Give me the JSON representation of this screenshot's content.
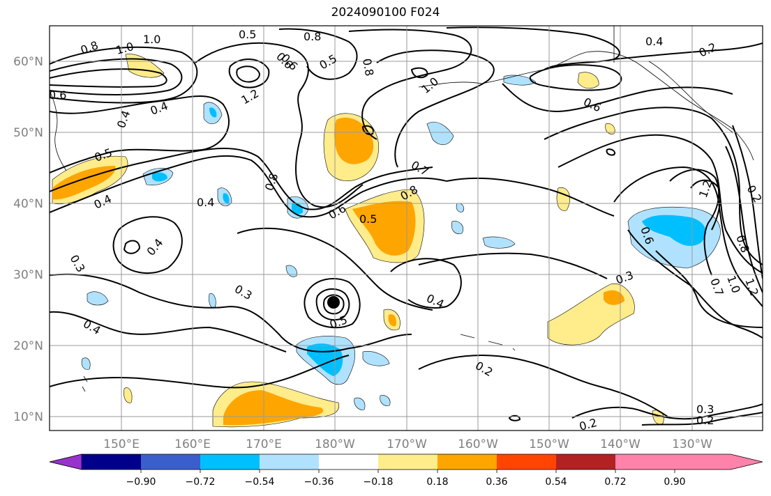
{
  "title": "2024090100 F024",
  "lat_labels": [
    "60°N",
    "50°N",
    "40°N",
    "30°N",
    "20°N",
    "10°N"
  ],
  "lon_labels": [
    "150°E",
    "160°E",
    "170°E",
    "180°W",
    "170°W",
    "160°W",
    "150°W",
    "140°W",
    "130°W"
  ],
  "colorbar": {
    "colors": [
      "#9932cc",
      "#00008b",
      "#3a5fcd",
      "#00bfff",
      "#b0e2ff",
      "#ffffff",
      "#ffec8b",
      "#ffa500",
      "#ff4500",
      "#b22222",
      "#ff82ab"
    ],
    "tick_labels": [
      "−0.90",
      "−0.72",
      "−0.54",
      "−0.36",
      "−0.18",
      "0.18",
      "0.36",
      "0.54",
      "0.72",
      "0.90"
    ]
  },
  "contour_labels": [
    {
      "text": "1.0"
    },
    {
      "text": "0.8"
    },
    {
      "text": "1.0"
    },
    {
      "text": "0.5"
    },
    {
      "text": "0.8"
    },
    {
      "text": "0.5"
    },
    {
      "text": "0.6"
    },
    {
      "text": "1.2"
    },
    {
      "text": "1.0"
    },
    {
      "text": "0.8"
    },
    {
      "text": "0.6"
    },
    {
      "text": "0.4"
    },
    {
      "text": "0.4"
    },
    {
      "text": "0.5"
    },
    {
      "text": "0.4"
    },
    {
      "text": "0.4"
    },
    {
      "text": "0.8"
    },
    {
      "text": "0.6"
    },
    {
      "text": "0.5"
    },
    {
      "text": "0.7"
    },
    {
      "text": "0.8"
    },
    {
      "text": "0.4"
    },
    {
      "text": "0.3"
    },
    {
      "text": "0.3"
    },
    {
      "text": "0.4"
    },
    {
      "text": "0.5"
    },
    {
      "text": "0.4"
    },
    {
      "text": "0.3"
    },
    {
      "text": "0.2"
    },
    {
      "text": "0.4"
    },
    {
      "text": "0.2"
    },
    {
      "text": "0.6"
    },
    {
      "text": "0.6"
    },
    {
      "text": "1.2"
    },
    {
      "text": "0.7"
    },
    {
      "text": "1.0"
    },
    {
      "text": "1.2"
    },
    {
      "text": "0.8"
    },
    {
      "text": "0.2"
    },
    {
      "text": "0.3"
    },
    {
      "text": "0.2"
    },
    {
      "text": "0.2"
    },
    {
      "text": "0.6"
    }
  ],
  "markers": [
    {
      "symbol": "filled-circle"
    }
  ]
}
